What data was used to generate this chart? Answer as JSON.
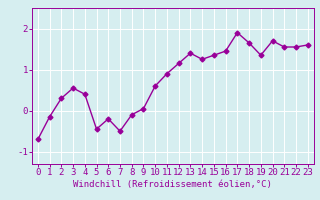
{
  "x": [
    0,
    1,
    2,
    3,
    4,
    5,
    6,
    7,
    8,
    9,
    10,
    11,
    12,
    13,
    14,
    15,
    16,
    17,
    18,
    19,
    20,
    21,
    22,
    23
  ],
  "y": [
    -0.7,
    -0.15,
    0.3,
    0.55,
    0.4,
    -0.45,
    -0.2,
    -0.5,
    -0.1,
    0.05,
    0.6,
    0.9,
    1.15,
    1.4,
    1.25,
    1.35,
    1.45,
    1.9,
    1.65,
    1.35,
    1.7,
    1.55,
    1.55,
    1.6
  ],
  "line_color": "#990099",
  "marker": "D",
  "marker_size": 2.5,
  "line_width": 1.0,
  "xlabel": "Windchill (Refroidissement éolien,°C)",
  "ylim": [
    -1.3,
    2.5
  ],
  "xlim": [
    -0.5,
    23.5
  ],
  "yticks": [
    -1,
    0,
    1,
    2
  ],
  "xticks": [
    0,
    1,
    2,
    3,
    4,
    5,
    6,
    7,
    8,
    9,
    10,
    11,
    12,
    13,
    14,
    15,
    16,
    17,
    18,
    19,
    20,
    21,
    22,
    23
  ],
  "bg_color": "#d6eef0",
  "grid_color": "#b0d8dc",
  "xlabel_fontsize": 6.5,
  "tick_fontsize": 6.5
}
